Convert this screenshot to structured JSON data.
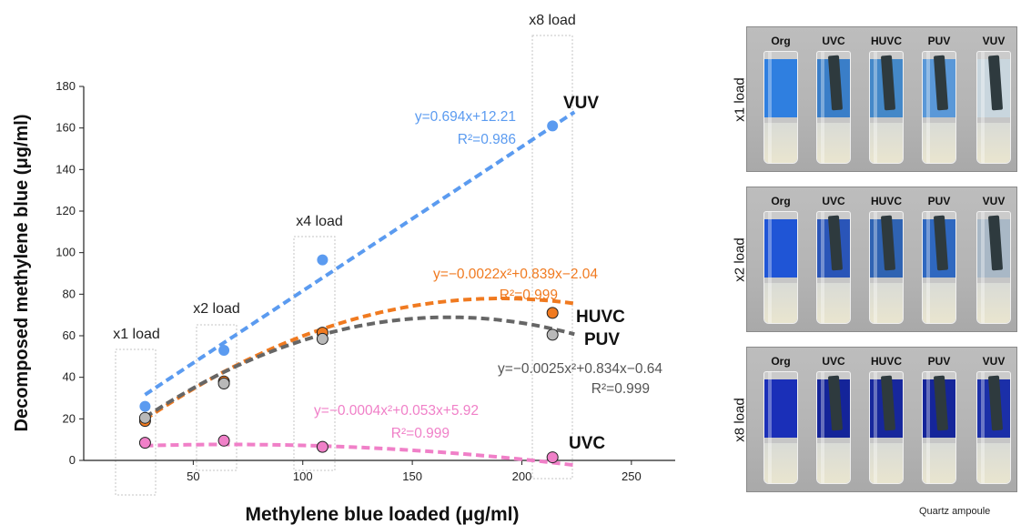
{
  "chart_data": {
    "type": "scatter",
    "xlabel": "Methylene blue loaded (μg/ml)",
    "ylabel": "Decomposed methylene blue (μg/ml)",
    "xlim": [
      0,
      270
    ],
    "ylim": [
      0,
      180
    ],
    "xticks": [
      50,
      100,
      150,
      200,
      250
    ],
    "yticks": [
      0,
      20,
      40,
      60,
      80,
      100,
      120,
      140,
      160,
      180
    ],
    "grid": false,
    "series": [
      {
        "name": "VUV",
        "color": "#5b9bf0",
        "marker": "filled",
        "x": [
          28,
          64,
          109,
          214
        ],
        "y": [
          26,
          53,
          96.5,
          161
        ],
        "fit": {
          "kind": "linear",
          "coef": [
            12.21,
            0.694
          ],
          "equation": "y=0.694x+12.21",
          "r2": "R²=0.986"
        }
      },
      {
        "name": "HUVC",
        "color": "#f07a20",
        "marker": "outlined",
        "x": [
          28,
          64,
          109,
          214
        ],
        "y": [
          19,
          38,
          61.5,
          71
        ],
        "fit": {
          "kind": "quadratic",
          "coef": [
            -2.04,
            0.839,
            -0.0022
          ],
          "equation": "y=−0.0022x²+0.839x−2.04",
          "r2": "R²=0.999"
        }
      },
      {
        "name": "PUV",
        "color": "#666666",
        "marker": "outlined",
        "markerFill": "#b9b9b9",
        "x": [
          28,
          64,
          109,
          214
        ],
        "y": [
          20.5,
          37,
          58.5,
          60.5
        ],
        "fit": {
          "kind": "quadratic",
          "coef": [
            -0.64,
            0.834,
            -0.0025
          ],
          "equation": "y=−0.0025x²+0.834x−0.64",
          "r2": "R²=0.999"
        }
      },
      {
        "name": "UVC",
        "color": "#f080c8",
        "marker": "outlined",
        "x": [
          28,
          64,
          109,
          214
        ],
        "y": [
          8.5,
          9.5,
          6.5,
          1.5
        ],
        "fit": {
          "kind": "quadratic",
          "coef": [
            5.92,
            0.053,
            -0.0004
          ],
          "equation": "y=−0.0004x²+0.053x+5.92",
          "r2": "R²=0.999"
        }
      }
    ],
    "groups": [
      {
        "label": "x1 load",
        "x": 28
      },
      {
        "label": "x2 load",
        "x": 64
      },
      {
        "label": "x4 load",
        "x": 109
      },
      {
        "label": "x8 load",
        "x": 214
      }
    ]
  },
  "photos": {
    "vial_labels": [
      "Org",
      "UVC",
      "HUVC",
      "PUV",
      "VUV"
    ],
    "panels": [
      {
        "label": "x1 load",
        "liquids": [
          "#2f7fe0",
          "#3a7ec8",
          "#4488c8",
          "#5a98d8",
          "#c9d6de"
        ],
        "lamps": [
          false,
          true,
          true,
          true,
          true
        ]
      },
      {
        "label": "x2 load",
        "liquids": [
          "#1f55d6",
          "#2a55b8",
          "#2f63b2",
          "#2f68c0",
          "#a9b8c6"
        ],
        "lamps": [
          false,
          true,
          true,
          true,
          true
        ]
      },
      {
        "label": "x8 load",
        "liquids": [
          "#1a2fb8",
          "#142499",
          "#17279c",
          "#15259a",
          "#1b2fa8"
        ],
        "lamps": [
          false,
          true,
          true,
          true,
          true
        ]
      }
    ],
    "footnote": "Quartz ampoule"
  }
}
